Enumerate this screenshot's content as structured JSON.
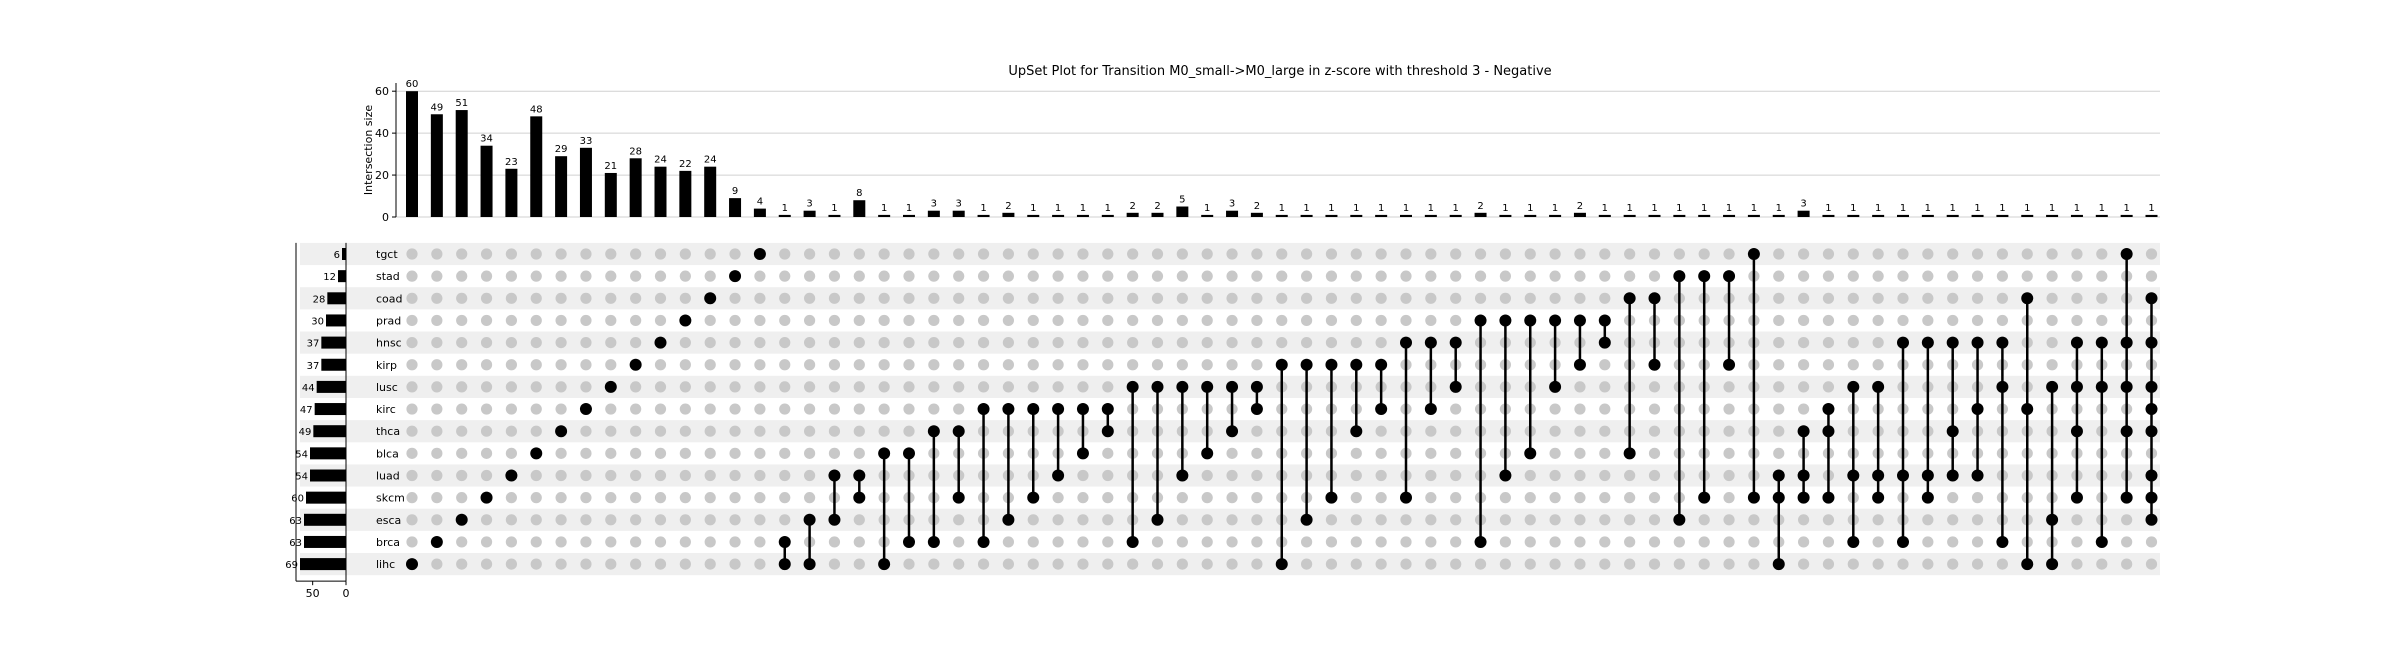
{
  "chart_data": {
    "type": "upset",
    "title": "UpSet Plot for Transition M0_small->M0_large in z-score with threshold 3 - Negative",
    "ylabel": "Intersection size",
    "ylim": [
      0,
      62
    ],
    "yticks": [
      "0",
      "20",
      "40",
      "60"
    ],
    "set_size_ticks": [
      "50",
      "0"
    ],
    "set_size_max": 69,
    "sets": [
      {
        "name": "tgct",
        "size": 6
      },
      {
        "name": "stad",
        "size": 12
      },
      {
        "name": "coad",
        "size": 28
      },
      {
        "name": "prad",
        "size": 30
      },
      {
        "name": "hnsc",
        "size": 37
      },
      {
        "name": "kirp",
        "size": 37
      },
      {
        "name": "lusc",
        "size": 44
      },
      {
        "name": "kirc",
        "size": 47
      },
      {
        "name": "thca",
        "size": 49
      },
      {
        "name": "blca",
        "size": 54
      },
      {
        "name": "luad",
        "size": 54
      },
      {
        "name": "skcm",
        "size": 60
      },
      {
        "name": "esca",
        "size": 63
      },
      {
        "name": "brca",
        "size": 63
      },
      {
        "name": "lihc",
        "size": 69
      }
    ],
    "intersections": [
      {
        "size": 60,
        "sets": [
          "lihc"
        ]
      },
      {
        "size": 49,
        "sets": [
          "brca"
        ]
      },
      {
        "size": 51,
        "sets": [
          "esca"
        ]
      },
      {
        "size": 34,
        "sets": [
          "skcm"
        ]
      },
      {
        "size": 23,
        "sets": [
          "luad"
        ]
      },
      {
        "size": 48,
        "sets": [
          "blca"
        ]
      },
      {
        "size": 29,
        "sets": [
          "thca"
        ]
      },
      {
        "size": 33,
        "sets": [
          "kirc"
        ]
      },
      {
        "size": 21,
        "sets": [
          "lusc"
        ]
      },
      {
        "size": 28,
        "sets": [
          "kirp"
        ]
      },
      {
        "size": 24,
        "sets": [
          "hnsc"
        ]
      },
      {
        "size": 22,
        "sets": [
          "prad"
        ]
      },
      {
        "size": 24,
        "sets": [
          "coad"
        ]
      },
      {
        "size": 9,
        "sets": [
          "stad"
        ]
      },
      {
        "size": 4,
        "sets": [
          "tgct"
        ]
      },
      {
        "size": 1,
        "sets": [
          "brca",
          "lihc"
        ]
      },
      {
        "size": 3,
        "sets": [
          "esca",
          "lihc"
        ]
      },
      {
        "size": 1,
        "sets": [
          "luad",
          "esca"
        ]
      },
      {
        "size": 8,
        "sets": [
          "luad",
          "skcm"
        ]
      },
      {
        "size": 1,
        "sets": [
          "blca",
          "lihc"
        ]
      },
      {
        "size": 1,
        "sets": [
          "blca",
          "brca"
        ]
      },
      {
        "size": 3,
        "sets": [
          "thca",
          "brca"
        ]
      },
      {
        "size": 3,
        "sets": [
          "thca",
          "skcm"
        ]
      },
      {
        "size": 1,
        "sets": [
          "kirc",
          "brca"
        ]
      },
      {
        "size": 2,
        "sets": [
          "kirc",
          "esca"
        ]
      },
      {
        "size": 1,
        "sets": [
          "kirc",
          "skcm"
        ]
      },
      {
        "size": 1,
        "sets": [
          "kirc",
          "luad"
        ]
      },
      {
        "size": 1,
        "sets": [
          "kirc",
          "blca"
        ]
      },
      {
        "size": 1,
        "sets": [
          "kirc",
          "thca"
        ]
      },
      {
        "size": 2,
        "sets": [
          "lusc",
          "brca"
        ]
      },
      {
        "size": 2,
        "sets": [
          "lusc",
          "esca"
        ]
      },
      {
        "size": 5,
        "sets": [
          "lusc",
          "luad"
        ]
      },
      {
        "size": 1,
        "sets": [
          "lusc",
          "blca"
        ]
      },
      {
        "size": 3,
        "sets": [
          "lusc",
          "thca"
        ]
      },
      {
        "size": 2,
        "sets": [
          "lusc",
          "kirc"
        ]
      },
      {
        "size": 1,
        "sets": [
          "kirp",
          "lihc"
        ]
      },
      {
        "size": 1,
        "sets": [
          "kirp",
          "esca"
        ]
      },
      {
        "size": 1,
        "sets": [
          "kirp",
          "skcm"
        ]
      },
      {
        "size": 1,
        "sets": [
          "kirp",
          "thca"
        ]
      },
      {
        "size": 1,
        "sets": [
          "kirp",
          "kirc"
        ]
      },
      {
        "size": 1,
        "sets": [
          "hnsc",
          "skcm"
        ]
      },
      {
        "size": 1,
        "sets": [
          "hnsc",
          "kirc"
        ]
      },
      {
        "size": 1,
        "sets": [
          "hnsc",
          "lusc"
        ]
      },
      {
        "size": 2,
        "sets": [
          "prad",
          "brca"
        ]
      },
      {
        "size": 1,
        "sets": [
          "prad",
          "luad"
        ]
      },
      {
        "size": 1,
        "sets": [
          "prad",
          "blca"
        ]
      },
      {
        "size": 1,
        "sets": [
          "prad",
          "lusc"
        ]
      },
      {
        "size": 2,
        "sets": [
          "prad",
          "kirp"
        ]
      },
      {
        "size": 1,
        "sets": [
          "prad",
          "hnsc"
        ]
      },
      {
        "size": 1,
        "sets": [
          "coad",
          "blca"
        ]
      },
      {
        "size": 1,
        "sets": [
          "coad",
          "kirp"
        ]
      },
      {
        "size": 1,
        "sets": [
          "stad",
          "esca"
        ]
      },
      {
        "size": 1,
        "sets": [
          "stad",
          "skcm"
        ]
      },
      {
        "size": 1,
        "sets": [
          "stad",
          "kirp"
        ]
      },
      {
        "size": 1,
        "sets": [
          "tgct",
          "skcm"
        ]
      },
      {
        "size": 1,
        "sets": [
          "luad",
          "skcm",
          "lihc"
        ]
      },
      {
        "size": 3,
        "sets": [
          "thca",
          "luad",
          "skcm"
        ]
      },
      {
        "size": 1,
        "sets": [
          "kirc",
          "thca",
          "skcm"
        ]
      },
      {
        "size": 1,
        "sets": [
          "lusc",
          "luad",
          "brca"
        ]
      },
      {
        "size": 1,
        "sets": [
          "lusc",
          "luad",
          "skcm"
        ]
      },
      {
        "size": 1,
        "sets": [
          "hnsc",
          "luad",
          "brca"
        ]
      },
      {
        "size": 1,
        "sets": [
          "hnsc",
          "luad",
          "skcm"
        ]
      },
      {
        "size": 1,
        "sets": [
          "hnsc",
          "thca",
          "luad"
        ]
      },
      {
        "size": 1,
        "sets": [
          "hnsc",
          "kirc",
          "luad"
        ]
      },
      {
        "size": 1,
        "sets": [
          "hnsc",
          "lusc",
          "brca"
        ]
      },
      {
        "size": 1,
        "sets": [
          "coad",
          "kirc",
          "lihc"
        ]
      },
      {
        "size": 1,
        "sets": [
          "lusc",
          "esca",
          "lihc"
        ]
      },
      {
        "size": 1,
        "sets": [
          "hnsc",
          "lusc",
          "thca",
          "skcm"
        ]
      },
      {
        "size": 1,
        "sets": [
          "hnsc",
          "lusc",
          "brca"
        ]
      },
      {
        "size": 1,
        "sets": [
          "tgct",
          "hnsc",
          "lusc",
          "thca",
          "skcm"
        ]
      },
      {
        "size": 1,
        "sets": [
          "coad",
          "hnsc",
          "lusc",
          "kirc",
          "thca",
          "luad",
          "skcm",
          "esca"
        ]
      }
    ]
  }
}
